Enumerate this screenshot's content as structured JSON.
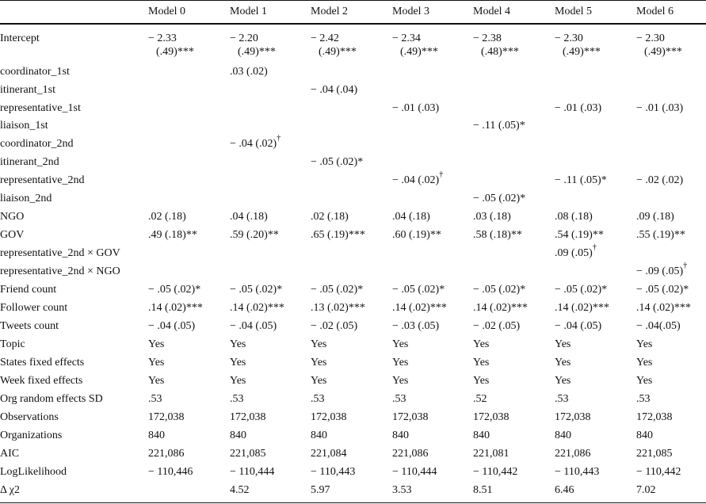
{
  "columns": [
    "Model 0",
    "Model 1",
    "Model 2",
    "Model 3",
    "Model 4",
    "Model 5",
    "Model 6"
  ],
  "rows": [
    {
      "label": "Intercept",
      "cells": [
        {
          "main": "− 2.33",
          "sub": "(.49)***"
        },
        {
          "main": "− 2.20",
          "sub": "(.49)***"
        },
        {
          "main": "− 2.42",
          "sub": "(.49)***"
        },
        {
          "main": "− 2.34",
          "sub": "(.49)***"
        },
        {
          "main": "− 2.38",
          "sub": "(.48)***"
        },
        {
          "main": "− 2.30",
          "sub": "(.49)***"
        },
        {
          "main": "− 2.30",
          "sub": "(.49)***"
        }
      ]
    },
    {
      "label": "coordinator_1st",
      "cells": [
        {
          "main": ""
        },
        {
          "main": ".03 (.02)"
        },
        {
          "main": ""
        },
        {
          "main": ""
        },
        {
          "main": ""
        },
        {
          "main": ""
        },
        {
          "main": ""
        }
      ]
    },
    {
      "label": "itinerant_1st",
      "cells": [
        {
          "main": ""
        },
        {
          "main": ""
        },
        {
          "main": "− .04 (.04)"
        },
        {
          "main": ""
        },
        {
          "main": ""
        },
        {
          "main": ""
        },
        {
          "main": ""
        }
      ]
    },
    {
      "label": "representative_1st",
      "cells": [
        {
          "main": ""
        },
        {
          "main": ""
        },
        {
          "main": ""
        },
        {
          "main": "− .01 (.03)"
        },
        {
          "main": ""
        },
        {
          "main": "− .01 (.03)"
        },
        {
          "main": "− .01 (.03)"
        }
      ]
    },
    {
      "label": "liaison_1st",
      "cells": [
        {
          "main": ""
        },
        {
          "main": ""
        },
        {
          "main": ""
        },
        {
          "main": ""
        },
        {
          "main": "− .11 (.05)*"
        },
        {
          "main": ""
        },
        {
          "main": ""
        }
      ]
    },
    {
      "label": "coordinator_2nd",
      "cells": [
        {
          "main": ""
        },
        {
          "main": "− .04 (.02)",
          "sup": "†"
        },
        {
          "main": ""
        },
        {
          "main": ""
        },
        {
          "main": ""
        },
        {
          "main": ""
        },
        {
          "main": ""
        }
      ]
    },
    {
      "label": "itinerant_2nd",
      "cells": [
        {
          "main": ""
        },
        {
          "main": ""
        },
        {
          "main": "− .05 (.02)*"
        },
        {
          "main": ""
        },
        {
          "main": ""
        },
        {
          "main": ""
        },
        {
          "main": ""
        }
      ]
    },
    {
      "label": "representative_2nd",
      "cells": [
        {
          "main": ""
        },
        {
          "main": ""
        },
        {
          "main": ""
        },
        {
          "main": "− .04 (.02)",
          "sup": "†"
        },
        {
          "main": ""
        },
        {
          "main": "− .11 (.05)*"
        },
        {
          "main": "− .02 (.02)"
        }
      ]
    },
    {
      "label": "liaison_2nd",
      "cells": [
        {
          "main": ""
        },
        {
          "main": ""
        },
        {
          "main": ""
        },
        {
          "main": ""
        },
        {
          "main": "− .05 (.02)*"
        },
        {
          "main": ""
        },
        {
          "main": ""
        }
      ]
    },
    {
      "label": "NGO",
      "cells": [
        {
          "main": ".02 (.18)"
        },
        {
          "main": ".04 (.18)"
        },
        {
          "main": ".02 (.18)"
        },
        {
          "main": ".04 (.18)"
        },
        {
          "main": ".03 (.18)"
        },
        {
          "main": ".08 (.18)"
        },
        {
          "main": ".09 (.18)"
        }
      ]
    },
    {
      "label": "GOV",
      "cells": [
        {
          "main": ".49 (.18)**"
        },
        {
          "main": ".59 (.20)**"
        },
        {
          "main": ".65 (.19)***"
        },
        {
          "main": ".60 (.19)**"
        },
        {
          "main": ".58 (.18)**"
        },
        {
          "main": ".54 (.19)**"
        },
        {
          "main": ".55 (.19)**"
        }
      ]
    },
    {
      "label": "representative_2nd × GOV",
      "cells": [
        {
          "main": ""
        },
        {
          "main": ""
        },
        {
          "main": ""
        },
        {
          "main": ""
        },
        {
          "main": ""
        },
        {
          "main": ".09 (.05)",
          "sup": "†"
        },
        {
          "main": ""
        }
      ]
    },
    {
      "label": "representative_2nd × NGO",
      "cells": [
        {
          "main": ""
        },
        {
          "main": ""
        },
        {
          "main": ""
        },
        {
          "main": ""
        },
        {
          "main": ""
        },
        {
          "main": ""
        },
        {
          "main": "− .09 (.05)",
          "sup": "†"
        }
      ]
    },
    {
      "label": "Friend count",
      "cells": [
        {
          "main": "− .05 (.02)*"
        },
        {
          "main": "− .05 (.02)*"
        },
        {
          "main": "− .05 (.02)*"
        },
        {
          "main": "− .05 (.02)*"
        },
        {
          "main": "− .05 (.02)*"
        },
        {
          "main": "− .05 (.02)*"
        },
        {
          "main": "− .05 (.02)*"
        }
      ]
    },
    {
      "label": "Follower count",
      "cells": [
        {
          "main": ".14 (.02)***"
        },
        {
          "main": ".14 (.02)***"
        },
        {
          "main": ".13 (.02)***"
        },
        {
          "main": ".14 (.02)***"
        },
        {
          "main": ".14 (.02)***"
        },
        {
          "main": ".14 (.02)***"
        },
        {
          "main": ".14 (.02)***"
        }
      ]
    },
    {
      "label": "Tweets count",
      "cells": [
        {
          "main": "− .04 (.05)"
        },
        {
          "main": "− .04 (.05)"
        },
        {
          "main": "− .02 (.05)"
        },
        {
          "main": "− .03 (.05)"
        },
        {
          "main": "− .02 (.05)"
        },
        {
          "main": "− .04 (.05)"
        },
        {
          "main": "− .04(.05)"
        }
      ]
    },
    {
      "label": "Topic",
      "cells": [
        {
          "main": "Yes"
        },
        {
          "main": "Yes"
        },
        {
          "main": "Yes"
        },
        {
          "main": "Yes"
        },
        {
          "main": "Yes"
        },
        {
          "main": "Yes"
        },
        {
          "main": "Yes"
        }
      ]
    },
    {
      "label": "States fixed effects",
      "cells": [
        {
          "main": "Yes"
        },
        {
          "main": "Yes"
        },
        {
          "main": "Yes"
        },
        {
          "main": "Yes"
        },
        {
          "main": "Yes"
        },
        {
          "main": "Yes"
        },
        {
          "main": "Yes"
        }
      ]
    },
    {
      "label": "Week fixed effects",
      "cells": [
        {
          "main": "Yes"
        },
        {
          "main": "Yes"
        },
        {
          "main": "Yes"
        },
        {
          "main": "Yes"
        },
        {
          "main": "Yes"
        },
        {
          "main": "Yes"
        },
        {
          "main": "Yes"
        }
      ]
    },
    {
      "label": "Org random effects SD",
      "cells": [
        {
          "main": ".53"
        },
        {
          "main": ".53"
        },
        {
          "main": ".53"
        },
        {
          "main": ".53"
        },
        {
          "main": ".52"
        },
        {
          "main": ".53"
        },
        {
          "main": ".53"
        }
      ]
    },
    {
      "label": "Observations",
      "cells": [
        {
          "main": "172,038"
        },
        {
          "main": "172,038"
        },
        {
          "main": "172,038"
        },
        {
          "main": "172,038"
        },
        {
          "main": "172,038"
        },
        {
          "main": "172,038"
        },
        {
          "main": "172,038"
        }
      ]
    },
    {
      "label": "Organizations",
      "cells": [
        {
          "main": "840"
        },
        {
          "main": "840"
        },
        {
          "main": "840"
        },
        {
          "main": "840"
        },
        {
          "main": "840"
        },
        {
          "main": "840"
        },
        {
          "main": "840"
        }
      ]
    },
    {
      "label": "AIC",
      "cells": [
        {
          "main": "221,086"
        },
        {
          "main": "221,085"
        },
        {
          "main": "221,084"
        },
        {
          "main": "221,086"
        },
        {
          "main": "221,081"
        },
        {
          "main": "221,086"
        },
        {
          "main": "221,085"
        }
      ]
    },
    {
      "label": "LogLikelihood",
      "cells": [
        {
          "main": "− 110,446"
        },
        {
          "main": "− 110,444"
        },
        {
          "main": "− 110,443"
        },
        {
          "main": "− 110,444"
        },
        {
          "main": "− 110,442"
        },
        {
          "main": "− 110,443"
        },
        {
          "main": "− 110,442"
        }
      ]
    },
    {
      "label": "Δ χ2",
      "cells": [
        {
          "main": ""
        },
        {
          "main": "4.52"
        },
        {
          "main": "5.97"
        },
        {
          "main": "3.53"
        },
        {
          "main": "8.51"
        },
        {
          "main": "6.46"
        },
        {
          "main": "7.02"
        }
      ]
    }
  ]
}
